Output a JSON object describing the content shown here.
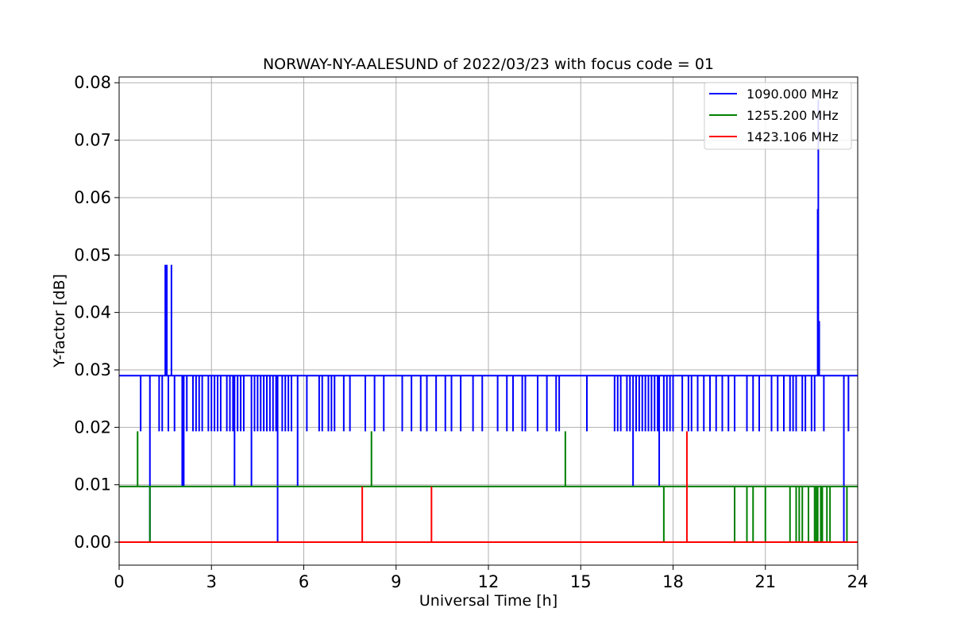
{
  "chart_data": {
    "type": "line",
    "title": "NORWAY-NY-AALESUND of 2022/03/23 with focus code = 01",
    "xlabel": "Universal Time [h]",
    "ylabel": "Y-factor [dB]",
    "xlim": [
      0,
      24
    ],
    "ylim": [
      -0.004,
      0.081
    ],
    "xticks": [
      0,
      3,
      6,
      9,
      12,
      15,
      18,
      21,
      24
    ],
    "yticks": [
      0.0,
      0.01,
      0.02,
      0.03,
      0.04,
      0.05,
      0.06,
      0.07,
      0.08
    ],
    "xtick_labels": [
      "0",
      "3",
      "6",
      "9",
      "12",
      "15",
      "18",
      "21",
      "24"
    ],
    "ytick_labels": [
      "0.00",
      "0.01",
      "0.02",
      "0.03",
      "0.04",
      "0.05",
      "0.06",
      "0.07",
      "0.08"
    ],
    "grid": true,
    "legend_position": "top-right",
    "series": [
      {
        "name": "1090.000 MHz",
        "color": "#0000ff",
        "baseline": 0.029,
        "dips": [
          {
            "t": 0.7,
            "v": 0.0193
          },
          {
            "t": 1.0,
            "v": 0.0
          },
          {
            "t": 1.3,
            "v": 0.0193
          },
          {
            "t": 1.4,
            "v": 0.0193
          },
          {
            "t": 1.6,
            "v": 0.0193
          },
          {
            "t": 1.8,
            "v": 0.0193
          },
          {
            "t": 2.05,
            "v": 0.0097
          },
          {
            "t": 2.1,
            "v": 0.0097
          },
          {
            "t": 2.2,
            "v": 0.0193
          },
          {
            "t": 2.4,
            "v": 0.0193
          },
          {
            "t": 2.5,
            "v": 0.0193
          },
          {
            "t": 2.6,
            "v": 0.0193
          },
          {
            "t": 2.7,
            "v": 0.0193
          },
          {
            "t": 2.9,
            "v": 0.0193
          },
          {
            "t": 3.0,
            "v": 0.0193
          },
          {
            "t": 3.1,
            "v": 0.0193
          },
          {
            "t": 3.2,
            "v": 0.0193
          },
          {
            "t": 3.3,
            "v": 0.0193
          },
          {
            "t": 3.5,
            "v": 0.0193
          },
          {
            "t": 3.6,
            "v": 0.0193
          },
          {
            "t": 3.7,
            "v": 0.0193
          },
          {
            "t": 3.75,
            "v": 0.0097
          },
          {
            "t": 3.85,
            "v": 0.0193
          },
          {
            "t": 3.95,
            "v": 0.0193
          },
          {
            "t": 4.05,
            "v": 0.0193
          },
          {
            "t": 4.3,
            "v": 0.0097
          },
          {
            "t": 4.4,
            "v": 0.0193
          },
          {
            "t": 4.5,
            "v": 0.0193
          },
          {
            "t": 4.6,
            "v": 0.0193
          },
          {
            "t": 4.7,
            "v": 0.0193
          },
          {
            "t": 4.8,
            "v": 0.0193
          },
          {
            "t": 4.9,
            "v": 0.0193
          },
          {
            "t": 5.0,
            "v": 0.0193
          },
          {
            "t": 5.1,
            "v": 0.0193
          },
          {
            "t": 5.15,
            "v": 0.0
          },
          {
            "t": 5.3,
            "v": 0.0193
          },
          {
            "t": 5.4,
            "v": 0.0193
          },
          {
            "t": 5.5,
            "v": 0.0193
          },
          {
            "t": 5.6,
            "v": 0.0193
          },
          {
            "t": 5.8,
            "v": 0.0097
          },
          {
            "t": 6.1,
            "v": 0.0193
          },
          {
            "t": 6.5,
            "v": 0.0193
          },
          {
            "t": 6.6,
            "v": 0.0193
          },
          {
            "t": 6.8,
            "v": 0.0193
          },
          {
            "t": 6.9,
            "v": 0.0193
          },
          {
            "t": 7.0,
            "v": 0.0193
          },
          {
            "t": 7.3,
            "v": 0.0193
          },
          {
            "t": 7.5,
            "v": 0.0193
          },
          {
            "t": 8.0,
            "v": 0.0193
          },
          {
            "t": 8.3,
            "v": 0.0193
          },
          {
            "t": 8.6,
            "v": 0.0193
          },
          {
            "t": 9.2,
            "v": 0.0193
          },
          {
            "t": 9.5,
            "v": 0.0193
          },
          {
            "t": 9.8,
            "v": 0.0193
          },
          {
            "t": 10.0,
            "v": 0.0193
          },
          {
            "t": 10.3,
            "v": 0.0193
          },
          {
            "t": 10.6,
            "v": 0.0193
          },
          {
            "t": 10.8,
            "v": 0.0193
          },
          {
            "t": 11.1,
            "v": 0.0193
          },
          {
            "t": 11.5,
            "v": 0.0193
          },
          {
            "t": 11.8,
            "v": 0.0193
          },
          {
            "t": 12.3,
            "v": 0.0193
          },
          {
            "t": 12.6,
            "v": 0.0193
          },
          {
            "t": 12.8,
            "v": 0.0193
          },
          {
            "t": 13.1,
            "v": 0.0193
          },
          {
            "t": 13.2,
            "v": 0.0193
          },
          {
            "t": 13.6,
            "v": 0.0193
          },
          {
            "t": 13.9,
            "v": 0.0193
          },
          {
            "t": 14.2,
            "v": 0.0193
          },
          {
            "t": 14.3,
            "v": 0.0193
          },
          {
            "t": 15.2,
            "v": 0.0193
          },
          {
            "t": 16.1,
            "v": 0.0193
          },
          {
            "t": 16.2,
            "v": 0.0193
          },
          {
            "t": 16.3,
            "v": 0.0193
          },
          {
            "t": 16.5,
            "v": 0.0193
          },
          {
            "t": 16.6,
            "v": 0.0193
          },
          {
            "t": 16.7,
            "v": 0.0097
          },
          {
            "t": 16.8,
            "v": 0.0193
          },
          {
            "t": 16.9,
            "v": 0.0193
          },
          {
            "t": 17.0,
            "v": 0.0193
          },
          {
            "t": 17.1,
            "v": 0.0193
          },
          {
            "t": 17.2,
            "v": 0.0193
          },
          {
            "t": 17.3,
            "v": 0.0193
          },
          {
            "t": 17.4,
            "v": 0.0193
          },
          {
            "t": 17.5,
            "v": 0.0193
          },
          {
            "t": 17.55,
            "v": 0.0097
          },
          {
            "t": 17.7,
            "v": 0.0193
          },
          {
            "t": 17.8,
            "v": 0.0193
          },
          {
            "t": 17.9,
            "v": 0.0193
          },
          {
            "t": 18.0,
            "v": 0.0193
          },
          {
            "t": 18.3,
            "v": 0.0193
          },
          {
            "t": 18.5,
            "v": 0.0193
          },
          {
            "t": 18.6,
            "v": 0.0193
          },
          {
            "t": 18.8,
            "v": 0.0193
          },
          {
            "t": 19.0,
            "v": 0.0193
          },
          {
            "t": 19.2,
            "v": 0.0193
          },
          {
            "t": 19.4,
            "v": 0.0193
          },
          {
            "t": 19.6,
            "v": 0.0193
          },
          {
            "t": 19.8,
            "v": 0.0193
          },
          {
            "t": 20.0,
            "v": 0.0193
          },
          {
            "t": 20.4,
            "v": 0.0193
          },
          {
            "t": 20.6,
            "v": 0.0193
          },
          {
            "t": 20.8,
            "v": 0.0193
          },
          {
            "t": 21.2,
            "v": 0.0193
          },
          {
            "t": 21.4,
            "v": 0.0193
          },
          {
            "t": 21.6,
            "v": 0.0193
          },
          {
            "t": 21.8,
            "v": 0.0193
          },
          {
            "t": 21.9,
            "v": 0.0193
          },
          {
            "t": 22.0,
            "v": 0.0193
          },
          {
            "t": 22.2,
            "v": 0.0193
          },
          {
            "t": 22.3,
            "v": 0.0193
          },
          {
            "t": 22.5,
            "v": 0.0193
          },
          {
            "t": 22.6,
            "v": 0.0193
          },
          {
            "t": 22.9,
            "v": 0.0193
          },
          {
            "t": 23.55,
            "v": 0.0
          },
          {
            "t": 23.7,
            "v": 0.0193
          }
        ],
        "spikes": [
          {
            "t": 1.5,
            "v": 0.0483
          },
          {
            "t": 1.55,
            "v": 0.0483
          },
          {
            "t": 1.7,
            "v": 0.0483
          },
          {
            "t": 22.7,
            "v": 0.058
          },
          {
            "t": 22.72,
            "v": 0.077
          },
          {
            "t": 22.75,
            "v": 0.0385
          }
        ]
      },
      {
        "name": "1255.200 MHz",
        "color": "#008000",
        "baseline": 0.0097,
        "dips": [
          {
            "t": 1.0,
            "v": 0.0
          },
          {
            "t": 17.7,
            "v": 0.0
          },
          {
            "t": 20.0,
            "v": 0.0
          },
          {
            "t": 20.4,
            "v": 0.0
          },
          {
            "t": 20.6,
            "v": 0.0
          },
          {
            "t": 21.0,
            "v": 0.0
          },
          {
            "t": 21.8,
            "v": 0.0
          },
          {
            "t": 22.0,
            "v": 0.0
          },
          {
            "t": 22.1,
            "v": 0.0
          },
          {
            "t": 22.2,
            "v": 0.0
          },
          {
            "t": 22.4,
            "v": 0.0
          },
          {
            "t": 22.6,
            "v": 0.0
          },
          {
            "t": 22.65,
            "v": 0.0
          },
          {
            "t": 22.7,
            "v": 0.0
          },
          {
            "t": 22.8,
            "v": 0.0
          },
          {
            "t": 22.85,
            "v": 0.0
          },
          {
            "t": 23.0,
            "v": 0.0
          },
          {
            "t": 23.1,
            "v": 0.0
          },
          {
            "t": 23.65,
            "v": 0.0
          }
        ],
        "spikes": [
          {
            "t": 0.6,
            "v": 0.0193
          },
          {
            "t": 8.2,
            "v": 0.0193
          },
          {
            "t": 14.5,
            "v": 0.0193
          }
        ]
      },
      {
        "name": "1423.106 MHz",
        "color": "#ff0000",
        "baseline": 0.0,
        "dips": [],
        "spikes": [
          {
            "t": 7.9,
            "v": 0.0097
          },
          {
            "t": 10.15,
            "v": 0.0097
          },
          {
            "t": 18.45,
            "v": 0.0193
          }
        ]
      }
    ]
  }
}
